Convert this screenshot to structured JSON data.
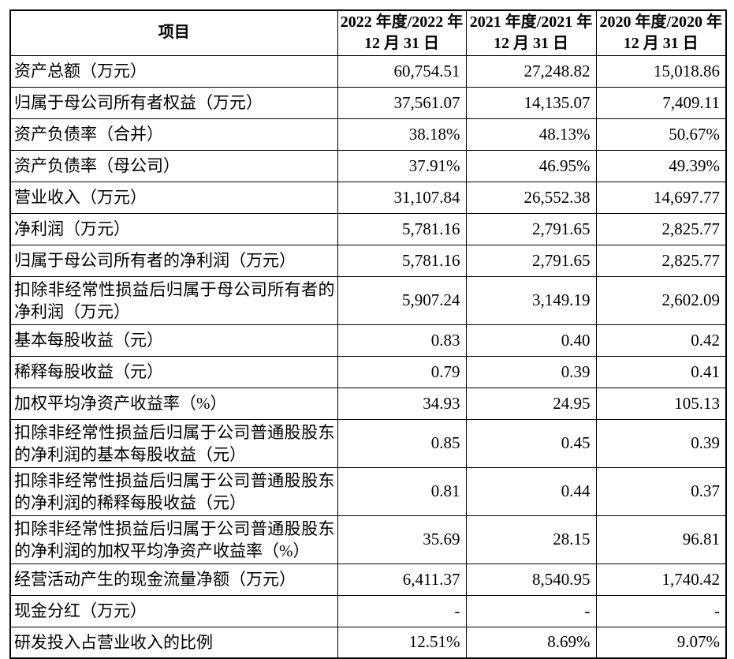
{
  "colors": {
    "border": "#000000",
    "text": "#000000",
    "background": "#ffffff"
  },
  "table": {
    "header": {
      "item_label": "项目",
      "periods": [
        {
          "line1": "2022 年度/2022 年",
          "line2": "12 月 31 日"
        },
        {
          "line1": "2021 年度/2021 年",
          "line2": "12 月 31 日"
        },
        {
          "line1": "2020 年度/2020 年",
          "line2": "12 月 31 日"
        }
      ]
    },
    "rows": [
      {
        "label": "资产总额（万元）",
        "twoline": false,
        "values": [
          "60,754.51",
          "27,248.82",
          "15,018.86"
        ]
      },
      {
        "label": "归属于母公司所有者权益（万元）",
        "twoline": false,
        "values": [
          "37,561.07",
          "14,135.07",
          "7,409.11"
        ]
      },
      {
        "label": "资产负债率（合并）",
        "twoline": false,
        "values": [
          "38.18%",
          "48.13%",
          "50.67%"
        ]
      },
      {
        "label": "资产负债率（母公司）",
        "twoline": false,
        "values": [
          "37.91%",
          "46.95%",
          "49.39%"
        ]
      },
      {
        "label": "营业收入（万元）",
        "twoline": false,
        "values": [
          "31,107.84",
          "26,552.38",
          "14,697.77"
        ]
      },
      {
        "label": "净利润（万元）",
        "twoline": false,
        "values": [
          "5,781.16",
          "2,791.65",
          "2,825.77"
        ]
      },
      {
        "label": "归属于母公司所有者的净利润（万元）",
        "twoline": false,
        "values": [
          "5,781.16",
          "2,791.65",
          "2,825.77"
        ]
      },
      {
        "label": "扣除非经常性损益后归属于母公司所有者的净利润（万元）",
        "twoline": true,
        "values": [
          "5,907.24",
          "3,149.19",
          "2,602.09"
        ]
      },
      {
        "label": "基本每股收益（元）",
        "twoline": false,
        "values": [
          "0.83",
          "0.40",
          "0.42"
        ]
      },
      {
        "label": "稀释每股收益（元）",
        "twoline": false,
        "values": [
          "0.79",
          "0.39",
          "0.41"
        ]
      },
      {
        "label": "加权平均净资产收益率（%）",
        "twoline": false,
        "values": [
          "34.93",
          "24.95",
          "105.13"
        ]
      },
      {
        "label": "扣除非经常性损益后归属于公司普通股股东的净利润的基本每股收益（元）",
        "twoline": true,
        "values": [
          "0.85",
          "0.45",
          "0.39"
        ]
      },
      {
        "label": "扣除非经常性损益后归属于公司普通股股东的净利润的稀释每股收益（元）",
        "twoline": true,
        "values": [
          "0.81",
          "0.44",
          "0.37"
        ]
      },
      {
        "label": "扣除非经常性损益后归属于公司普通股股东的净利润的加权平均净资产收益率（%）",
        "twoline": true,
        "values": [
          "35.69",
          "28.15",
          "96.81"
        ]
      },
      {
        "label": "经营活动产生的现金流量净额（万元）",
        "twoline": false,
        "values": [
          "6,411.37",
          "8,540.95",
          "1,740.42"
        ]
      },
      {
        "label": "现金分红（万元）",
        "twoline": false,
        "values": [
          "-",
          "-",
          "-"
        ]
      },
      {
        "label": "研发投入占营业收入的比例",
        "twoline": false,
        "values": [
          "12.51%",
          "8.69%",
          "9.07%"
        ]
      }
    ]
  }
}
